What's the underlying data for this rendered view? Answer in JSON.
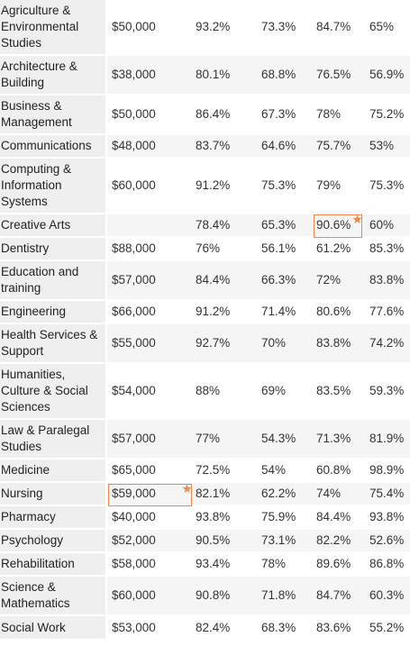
{
  "rows": [
    {
      "field": "Agriculture & Environmental Studies",
      "salary": "$50,000",
      "a": "93.2%",
      "b": "73.3%",
      "c": "84.7%",
      "d": "65%"
    },
    {
      "field": "Architecture & Building",
      "salary": "$38,000",
      "a": "80.1%",
      "b": "68.8%",
      "c": "76.5%",
      "d": "56.9%"
    },
    {
      "field": "Business & Management",
      "salary": "$50,000",
      "a": "86.4%",
      "b": "67.3%",
      "c": "78%",
      "d": "75.2%"
    },
    {
      "field": "Communications",
      "salary": "$48,000",
      "a": "83.7%",
      "b": "64.6%",
      "c": "75.7%",
      "d": "53%"
    },
    {
      "field": "Computing & Information Systems",
      "salary": "$60,000",
      "a": "91.2%",
      "b": "75.3%",
      "c": "79%",
      "d": "75.3%"
    },
    {
      "field": "Creative Arts",
      "salary": "",
      "a": "78.4%",
      "b": "65.3%",
      "c": "90.6%",
      "d": "60%"
    },
    {
      "field": "Dentistry",
      "salary": "$88,000",
      "a": "76%",
      "b": "56.1%",
      "c": "61.2%",
      "d": "85.3%"
    },
    {
      "field": "Education and training",
      "salary": "$57,000",
      "a": "84.4%",
      "b": "66.3%",
      "c": "72%",
      "d": "83.8%"
    },
    {
      "field": "Engineering",
      "salary": "$66,000",
      "a": "91.2%",
      "b": "71.4%",
      "c": "80.6%",
      "d": "77.6%"
    },
    {
      "field": "Health Services & Support",
      "salary": "$55,000",
      "a": "92.7%",
      "b": "70%",
      "c": "83.8%",
      "d": "74.2%"
    },
    {
      "field": "Humanities, Culture & Social Sciences",
      "salary": "$54,000",
      "a": "88%",
      "b": "69%",
      "c": "83.5%",
      "d": "59.3%"
    },
    {
      "field": "Law & Paralegal Studies",
      "salary": "$57,000",
      "a": "77%",
      "b": "54.3%",
      "c": "71.3%",
      "d": "81.9%"
    },
    {
      "field": "Medicine",
      "salary": "$65,000",
      "a": "72.5%",
      "b": "54%",
      "c": "60.8%",
      "d": "98.9%"
    },
    {
      "field": "Nursing",
      "salary": "$59,000",
      "a": "82.1%",
      "b": "62.2%",
      "c": "74%",
      "d": "75.4%"
    },
    {
      "field": "Pharmacy",
      "salary": "$40,000",
      "a": "93.8%",
      "b": "75.9%",
      "c": "84.4%",
      "d": "93.8%"
    },
    {
      "field": "Psychology",
      "salary": "$52,000",
      "a": "90.5%",
      "b": "73.1%",
      "c": "82.2%",
      "d": "52.6%"
    },
    {
      "field": "Rehabilitation",
      "salary": "$58,000",
      "a": "93.4%",
      "b": "78%",
      "c": "89.6%",
      "d": "86.8%"
    },
    {
      "field": "Science & Mathematics",
      "salary": "$60,000",
      "a": "90.8%",
      "b": "71.8%",
      "c": "84.7%",
      "d": "60.3%"
    },
    {
      "field": "Social Work",
      "salary": "$53,000",
      "a": "82.4%",
      "b": "68.3%",
      "c": "83.6%",
      "d": "55.2%"
    }
  ],
  "highlights": {
    "creative_arts_c": "star",
    "nursing_salary": "star"
  },
  "colors": {
    "field_bg": "#efefef",
    "row_alt_bg": "#f5f5f5",
    "highlight": "#f0884a",
    "text": "#333333"
  },
  "icons": [
    "star-icon"
  ]
}
